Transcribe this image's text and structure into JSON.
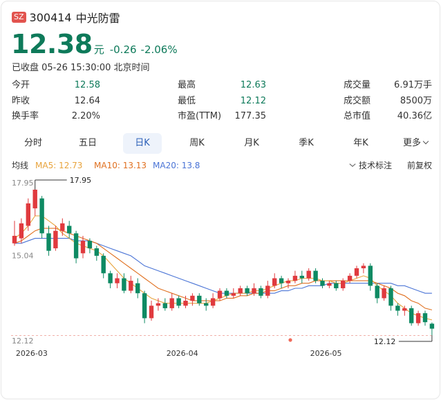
{
  "header": {
    "exchange": "SZ",
    "code": "300414",
    "name": "中光防雷"
  },
  "quote": {
    "price": "12.38",
    "unit": "元",
    "change": "-0.26",
    "change_pct": "-2.06%",
    "status": "已收盘 05-26 15:30:00 北京时间"
  },
  "stats": [
    {
      "label": "今开",
      "value": "12.58",
      "color": "green"
    },
    {
      "label": "最高",
      "value": "12.63",
      "color": "green"
    },
    {
      "label": "成交量",
      "value": "6.91万手",
      "color": ""
    },
    {
      "label": "昨收",
      "value": "12.64",
      "color": ""
    },
    {
      "label": "最低",
      "value": "12.12",
      "color": "green"
    },
    {
      "label": "成交额",
      "value": "8500万",
      "color": ""
    },
    {
      "label": "换手率",
      "value": "2.20%",
      "color": ""
    },
    {
      "label": "市盈(TTM)",
      "value": "177.35",
      "color": ""
    },
    {
      "label": "总市值",
      "value": "40.36亿",
      "color": ""
    }
  ],
  "tabs": [
    {
      "label": "分时",
      "active": false
    },
    {
      "label": "五日",
      "active": false
    },
    {
      "label": "日K",
      "active": true
    },
    {
      "label": "周K",
      "active": false
    },
    {
      "label": "月K",
      "active": false
    },
    {
      "label": "季K",
      "active": false
    },
    {
      "label": "年K",
      "active": false
    },
    {
      "label": "更多",
      "active": false
    }
  ],
  "ma": {
    "label": "均线",
    "ma5": "MA5: 12.73",
    "ma10": "MA10: 13.13",
    "ma20": "MA20: 13.8",
    "tools": "技术标注",
    "adjust": "前复权"
  },
  "colors": {
    "up": "#e03a3e",
    "down": "#0e8a63",
    "ma5": "#e8a33b",
    "ma10": "#e07020",
    "ma20": "#4a74d6"
  },
  "chart_data": {
    "type": "candlestick",
    "y_ticks": [
      "17.95",
      "15.04",
      "12.12"
    ],
    "ylim": [
      12.12,
      17.95
    ],
    "x_ticks": [
      {
        "label": "2026-03",
        "index": 1
      },
      {
        "label": "2026-04",
        "index": 23
      },
      {
        "label": "2026-05",
        "index": 44
      }
    ],
    "max_label": "17.95",
    "min_label": "12.12",
    "candles": [
      [
        15.8,
        16.1,
        16.7,
        15.7
      ],
      [
        16.0,
        16.6,
        16.8,
        15.8
      ],
      [
        16.5,
        17.4,
        17.6,
        16.3
      ],
      [
        17.2,
        17.95,
        17.95,
        16.9
      ],
      [
        17.6,
        16.2,
        17.7,
        16.0
      ],
      [
        16.2,
        15.5,
        16.5,
        15.3
      ],
      [
        15.6,
        16.3,
        16.5,
        15.5
      ],
      [
        16.3,
        16.6,
        16.8,
        16.1
      ],
      [
        16.5,
        16.2,
        16.7,
        16.0
      ],
      [
        16.2,
        15.2,
        16.3,
        15.0
      ],
      [
        15.4,
        15.9,
        16.1,
        15.2
      ],
      [
        15.9,
        15.6,
        16.0,
        15.4
      ],
      [
        15.6,
        15.3,
        15.7,
        15.1
      ],
      [
        15.3,
        14.6,
        15.4,
        14.4
      ],
      [
        14.6,
        14.2,
        14.7,
        14.0
      ],
      [
        14.2,
        14.4,
        14.6,
        14.0
      ],
      [
        14.4,
        13.9,
        14.6,
        13.8
      ],
      [
        13.9,
        14.3,
        14.5,
        13.8
      ],
      [
        14.2,
        13.8,
        14.4,
        13.6
      ],
      [
        13.8,
        12.8,
        13.9,
        12.6
      ],
      [
        12.8,
        13.3,
        13.5,
        12.7
      ],
      [
        13.3,
        13.4,
        13.6,
        13.1
      ],
      [
        13.4,
        13.2,
        13.6,
        13.1
      ],
      [
        13.2,
        13.6,
        13.8,
        13.1
      ],
      [
        13.6,
        13.3,
        13.7,
        13.2
      ],
      [
        13.3,
        13.5,
        13.7,
        13.2
      ],
      [
        13.5,
        13.7,
        13.8,
        13.3
      ],
      [
        13.7,
        13.4,
        13.8,
        13.3
      ],
      [
        13.4,
        13.3,
        13.6,
        13.1
      ],
      [
        13.3,
        13.6,
        13.8,
        13.2
      ],
      [
        13.6,
        13.9,
        14.0,
        13.5
      ],
      [
        13.9,
        13.7,
        14.0,
        13.6
      ],
      [
        13.7,
        13.8,
        14.0,
        13.6
      ],
      [
        13.8,
        14.0,
        14.1,
        13.7
      ],
      [
        14.0,
        13.8,
        14.1,
        13.7
      ],
      [
        13.8,
        14.0,
        14.2,
        13.7
      ],
      [
        14.0,
        13.7,
        14.1,
        13.6
      ],
      [
        13.7,
        14.1,
        14.3,
        13.6
      ],
      [
        14.1,
        14.4,
        14.6,
        14.0
      ],
      [
        14.4,
        14.2,
        14.5,
        14.0
      ],
      [
        14.2,
        14.3,
        14.4,
        14.0
      ],
      [
        14.3,
        14.5,
        14.7,
        14.2
      ],
      [
        14.5,
        14.4,
        14.7,
        14.2
      ],
      [
        14.4,
        14.7,
        14.8,
        14.3
      ],
      [
        14.7,
        14.3,
        14.8,
        14.2
      ],
      [
        14.3,
        14.1,
        14.4,
        14.0
      ],
      [
        14.1,
        14.2,
        14.3,
        14.0
      ],
      [
        14.2,
        14.0,
        14.3,
        13.9
      ],
      [
        14.0,
        14.3,
        14.4,
        13.9
      ],
      [
        14.3,
        14.5,
        14.6,
        14.2
      ],
      [
        14.5,
        14.8,
        14.9,
        14.4
      ],
      [
        14.8,
        14.9,
        15.0,
        14.6
      ],
      [
        14.9,
        14.1,
        15.0,
        13.9
      ],
      [
        14.1,
        13.6,
        14.2,
        13.4
      ],
      [
        13.6,
        14.0,
        14.1,
        13.5
      ],
      [
        14.0,
        13.3,
        14.1,
        13.1
      ],
      [
        13.3,
        13.1,
        13.4,
        12.9
      ],
      [
        13.1,
        13.2,
        13.3,
        12.9
      ],
      [
        13.2,
        12.6,
        13.3,
        12.5
      ],
      [
        12.6,
        13.0,
        13.1,
        12.5
      ],
      [
        13.0,
        12.64,
        13.1,
        12.5
      ],
      [
        12.58,
        12.38,
        12.63,
        12.12
      ]
    ],
    "ma5": [
      16.0,
      16.2,
      16.5,
      16.9,
      16.9,
      16.7,
      16.5,
      16.2,
      16.0,
      15.8,
      15.7,
      15.6,
      15.5,
      15.3,
      15.0,
      14.7,
      14.4,
      14.2,
      14.0,
      13.8,
      13.6,
      13.5,
      13.4,
      13.4,
      13.4,
      13.4,
      13.4,
      13.4,
      13.4,
      13.5,
      13.6,
      13.7,
      13.8,
      13.8,
      13.8,
      13.9,
      13.9,
      14.0,
      14.1,
      14.2,
      14.3,
      14.3,
      14.4,
      14.4,
      14.4,
      14.3,
      14.3,
      14.2,
      14.2,
      14.3,
      14.4,
      14.5,
      14.4,
      14.1,
      13.9,
      13.7,
      13.4,
      13.2,
      13.0,
      12.9,
      12.8,
      12.73
    ],
    "ma10": [
      15.8,
      15.9,
      16.1,
      16.3,
      16.4,
      16.4,
      16.4,
      16.3,
      16.2,
      16.1,
      16.0,
      15.9,
      15.8,
      15.6,
      15.4,
      15.2,
      15.0,
      14.8,
      14.6,
      14.4,
      14.2,
      14.0,
      13.9,
      13.8,
      13.7,
      13.6,
      13.5,
      13.5,
      13.5,
      13.5,
      13.5,
      13.6,
      13.6,
      13.7,
      13.7,
      13.8,
      13.8,
      13.9,
      13.9,
      14.0,
      14.1,
      14.1,
      14.2,
      14.2,
      14.3,
      14.3,
      14.3,
      14.3,
      14.3,
      14.3,
      14.3,
      14.3,
      14.3,
      14.2,
      14.1,
      14.0,
      13.8,
      13.7,
      13.5,
      13.4,
      13.2,
      13.13
    ],
    "ma20": [
      15.8,
      15.8,
      15.9,
      16.0,
      16.0,
      16.0,
      16.0,
      16.0,
      16.0,
      15.9,
      15.9,
      15.9,
      15.8,
      15.7,
      15.6,
      15.5,
      15.4,
      15.3,
      15.1,
      14.9,
      14.8,
      14.7,
      14.6,
      14.5,
      14.4,
      14.3,
      14.2,
      14.1,
      14.0,
      13.9,
      13.8,
      13.8,
      13.8,
      13.8,
      13.8,
      13.8,
      13.8,
      13.8,
      13.8,
      13.9,
      13.9,
      14.0,
      14.0,
      14.1,
      14.1,
      14.1,
      14.2,
      14.2,
      14.2,
      14.2,
      14.2,
      14.2,
      14.2,
      14.2,
      14.2,
      14.2,
      14.1,
      14.1,
      14.0,
      13.9,
      13.8,
      13.8
    ]
  }
}
